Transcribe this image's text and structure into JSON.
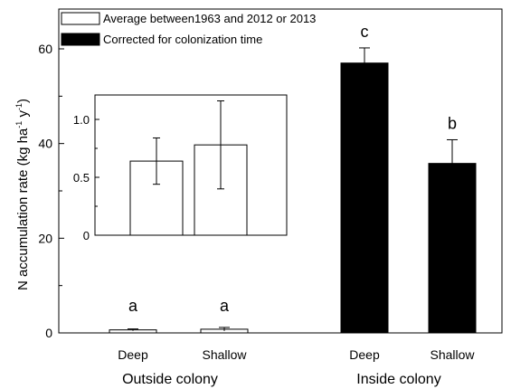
{
  "chart_data": {
    "type": "bar",
    "ylabel": "N accumulation rate (kg ha",
    "ylabel_sup1": "-1",
    "ylabel_mid": " y",
    "ylabel_sup2": "-1",
    "ylabel_end": ")",
    "ylim": [
      0,
      68
    ],
    "yticks": [
      0,
      20,
      40,
      60
    ],
    "groups": [
      "Outside colony",
      "Inside colony"
    ],
    "categories": [
      "Deep",
      "Shallow",
      "Deep",
      "Shallow"
    ],
    "series": [
      {
        "name": "Average between1963 and 2012 or 2013",
        "fill": "#ffffff",
        "values": [
          0.64,
          0.78,
          null,
          null
        ],
        "errors": [
          0.2,
          0.38,
          null,
          null
        ]
      },
      {
        "name": "Corrected for colonization time",
        "fill": "#000000",
        "values": [
          null,
          null,
          57.0,
          35.8
        ],
        "errors": [
          null,
          null,
          3.2,
          5.0
        ]
      }
    ],
    "significance_letters": [
      "a",
      "a",
      "c",
      "b"
    ],
    "inset": {
      "categories": [
        "Deep",
        "Shallow"
      ],
      "values": [
        0.64,
        0.78
      ],
      "errors": [
        0.2,
        0.38
      ],
      "ylim": [
        0,
        1.25
      ],
      "yticks": [
        "0",
        "0.5",
        "1.0"
      ]
    }
  }
}
